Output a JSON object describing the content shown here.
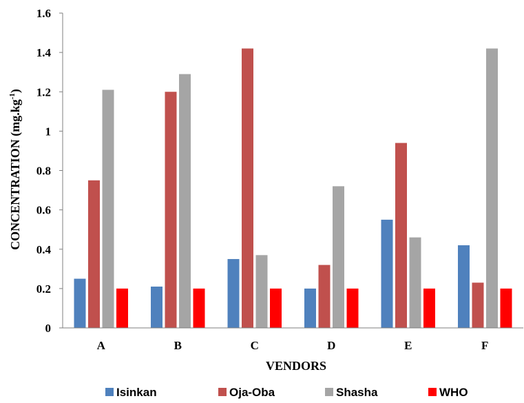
{
  "chart_data": {
    "type": "bar",
    "title": "",
    "xlabel": "VENDORS",
    "ylabel": "CONCENTRATION (mg.kg",
    "ylabel_superscript": "-1",
    "ylabel_suffix": ")",
    "categories": [
      "A",
      "B",
      "C",
      "D",
      "E",
      "F"
    ],
    "ylim": [
      0,
      1.6
    ],
    "yticks": [
      "0",
      "0.2",
      "0.4",
      "0.6",
      "0.8",
      "1",
      "1.2",
      "1.4",
      "1.6"
    ],
    "grid": false,
    "legend_position": "bottom",
    "series": [
      {
        "name": "Isinkan",
        "color": "#4f81bd",
        "values": [
          0.25,
          0.21,
          0.35,
          0.2,
          0.55,
          0.42
        ]
      },
      {
        "name": "Oja-Oba",
        "color": "#c0504d",
        "values": [
          0.75,
          1.2,
          1.42,
          0.32,
          0.94,
          0.23
        ]
      },
      {
        "name": "Shasha",
        "color": "#a5a5a5",
        "values": [
          1.21,
          1.29,
          0.37,
          0.72,
          0.46,
          1.42
        ]
      },
      {
        "name": "WHO",
        "color": "#ff0000",
        "values": [
          0.2,
          0.2,
          0.2,
          0.2,
          0.2,
          0.2
        ]
      }
    ]
  }
}
